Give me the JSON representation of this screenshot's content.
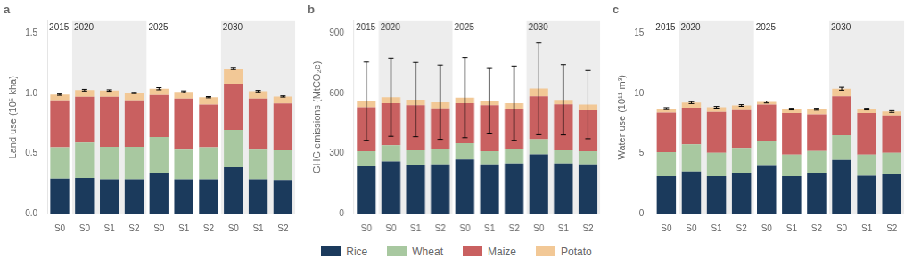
{
  "chart_data": [
    {
      "type": "bar",
      "title": "a",
      "stacked": true,
      "grid": false,
      "legend": "bottom",
      "ylabel": "Land use (10⁵ kha)",
      "categories": [
        "S0",
        "S0",
        "S1",
        "S2",
        "S0",
        "S1",
        "S2",
        "S0",
        "S1",
        "S2"
      ],
      "groups": [
        "2015",
        "2020",
        "2020",
        "2020",
        "2025",
        "2025",
        "2025",
        "2030",
        "2030",
        "2030"
      ],
      "series": [
        {
          "name": "Rice",
          "color": "#1b3a5c",
          "values": [
            0.29,
            0.295,
            0.285,
            0.285,
            0.335,
            0.285,
            0.285,
            0.385,
            0.285,
            0.28
          ]
        },
        {
          "name": "Wheat",
          "color": "#a8c8a0",
          "values": [
            0.26,
            0.295,
            0.27,
            0.27,
            0.3,
            0.245,
            0.265,
            0.31,
            0.245,
            0.245
          ]
        },
        {
          "name": "Maize",
          "color": "#c96060",
          "values": [
            0.39,
            0.38,
            0.415,
            0.385,
            0.35,
            0.425,
            0.355,
            0.385,
            0.425,
            0.39
          ]
        },
        {
          "name": "Potato",
          "color": "#f2c896",
          "values": [
            0.048,
            0.055,
            0.052,
            0.062,
            0.052,
            0.057,
            0.062,
            0.125,
            0.062,
            0.058
          ]
        }
      ],
      "error": [
        0.005,
        0.007,
        0.006,
        0.005,
        0.009,
        0.007,
        0.005,
        0.009,
        0.006,
        0.005
      ],
      "ylim": [
        0.0,
        1.6
      ],
      "yticks": [
        {
          "value": 0.0,
          "label": "0.0"
        },
        0.5,
        {
          "value": 1.0,
          "label": "1.0"
        },
        1.5
      ]
    },
    {
      "type": "bar",
      "title": "b",
      "stacked": true,
      "grid": false,
      "legend": "bottom",
      "ylabel": "GHG emissions (MtCO₂e)",
      "categories": [
        "S0",
        "S0",
        "S1",
        "S2",
        "S0",
        "S1",
        "S2",
        "S0",
        "S1",
        "S2"
      ],
      "groups": [
        "2015",
        "2020",
        "2020",
        "2020",
        "2025",
        "2025",
        "2025",
        "2030",
        "2030",
        "2030"
      ],
      "series": [
        {
          "name": "Rice",
          "color": "#1b3a5c",
          "values": [
            235,
            260,
            240,
            245,
            270,
            245,
            250,
            295,
            250,
            245
          ]
        },
        {
          "name": "Wheat",
          "color": "#a8c8a0",
          "values": [
            75,
            80,
            75,
            75,
            80,
            65,
            70,
            75,
            65,
            65
          ]
        },
        {
          "name": "Maize",
          "color": "#c96060",
          "values": [
            220,
            210,
            225,
            205,
            200,
            230,
            200,
            215,
            230,
            205
          ]
        },
        {
          "name": "Potato",
          "color": "#f2c896",
          "values": [
            30,
            30,
            28,
            30,
            28,
            22,
            30,
            38,
            22,
            28
          ]
        }
      ],
      "error": [
        195,
        195,
        185,
        185,
        200,
        165,
        185,
        230,
        175,
        170
      ],
      "ylim": [
        0,
        960
      ],
      "yticks": [
        0,
        300,
        600,
        900
      ]
    },
    {
      "type": "bar",
      "title": "c",
      "stacked": true,
      "grid": false,
      "legend": "bottom",
      "ylabel": "Water use (10¹¹ m³)",
      "categories": [
        "S0",
        "S0",
        "S1",
        "S2",
        "S0",
        "S1",
        "S2",
        "S0",
        "S1",
        "S2"
      ],
      "groups": [
        "2015",
        "2020",
        "2020",
        "2020",
        "2025",
        "2025",
        "2025",
        "2030",
        "2030",
        "2030"
      ],
      "series": [
        {
          "name": "Rice",
          "color": "#1b3a5c",
          "values": [
            3.1,
            3.5,
            3.1,
            3.4,
            3.95,
            3.1,
            3.35,
            4.45,
            3.15,
            3.25
          ]
        },
        {
          "name": "Wheat",
          "color": "#a8c8a0",
          "values": [
            2.0,
            2.25,
            1.95,
            2.05,
            2.05,
            1.8,
            1.85,
            2.05,
            1.75,
            1.8
          ]
        },
        {
          "name": "Maize",
          "color": "#c96060",
          "values": [
            3.3,
            3.05,
            3.4,
            3.15,
            3.05,
            3.45,
            3.05,
            3.25,
            3.45,
            3.1
          ]
        },
        {
          "name": "Potato",
          "color": "#f2c896",
          "values": [
            0.32,
            0.42,
            0.38,
            0.38,
            0.22,
            0.33,
            0.42,
            0.62,
            0.33,
            0.33
          ]
        }
      ],
      "error": [
        0.08,
        0.08,
        0.07,
        0.07,
        0.08,
        0.07,
        0.08,
        0.12,
        0.07,
        0.07
      ],
      "ylim": [
        0,
        16
      ],
      "yticks": [
        0,
        5,
        10,
        15
      ]
    }
  ]
}
